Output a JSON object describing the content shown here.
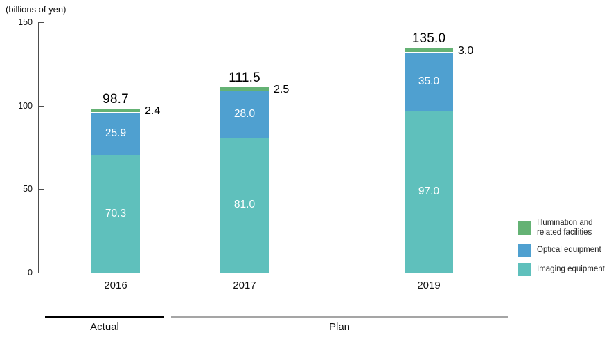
{
  "colors": {
    "imaging": "#5fc0bc",
    "optical": "#4fa0d0",
    "illumination": "#64b274",
    "actual_line": "#000000",
    "plan_line": "#a5a5a5",
    "axis": "#4d4d4d"
  },
  "chart_data": {
    "type": "bar",
    "stacked": true,
    "title": "",
    "ylabel": "(billions of yen)",
    "xlabel": "",
    "ylim": [
      0,
      150
    ],
    "yticks": [
      "0",
      "50",
      "100",
      "150"
    ],
    "ytick_values": [
      0,
      50,
      100,
      150
    ],
    "grid": false,
    "legend_position": "right",
    "categories": [
      "2016",
      "2017",
      "2019"
    ],
    "series": [
      {
        "name": "Imaging equipment",
        "color_key": "imaging",
        "label_style": "inside",
        "values": [
          70.3,
          81.0,
          97.0
        ],
        "labels": [
          "70.3",
          "81.0",
          "97.0"
        ]
      },
      {
        "name": "Optical equipment",
        "color_key": "optical",
        "label_style": "inside",
        "values": [
          25.9,
          28.0,
          35.0
        ],
        "labels": [
          "25.9",
          "28.0",
          "35.0"
        ]
      },
      {
        "name": "Illumination and related facilities",
        "color_key": "illumination",
        "label_style": "outside",
        "values": [
          2.4,
          2.5,
          3.0
        ],
        "labels": [
          "2.4",
          "2.5",
          "3.0"
        ]
      }
    ],
    "totals": [
      "98.7",
      "111.5",
      "135.0"
    ]
  },
  "legend": {
    "items": [
      {
        "label": "Illumination and related facilities",
        "color_key": "illumination"
      },
      {
        "label": "Optical equipment",
        "color_key": "optical"
      },
      {
        "label": "Imaging equipment",
        "color_key": "imaging"
      }
    ]
  },
  "annotations": {
    "actual_label": "Actual",
    "plan_label": "Plan"
  }
}
